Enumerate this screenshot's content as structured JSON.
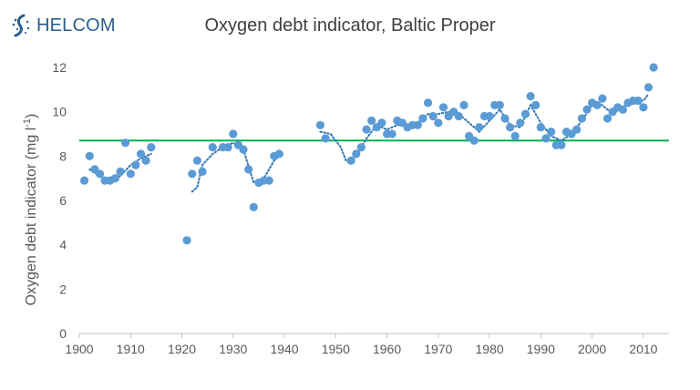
{
  "logo": {
    "text": "HELCOM"
  },
  "chart_data": {
    "type": "scatter",
    "title": "Oxygen debt indicator, Baltic Proper",
    "xlabel": "",
    "ylabel": "Oxygen debt indicator (mg l",
    "ylabel_sup": "-1",
    "ylabel_close": ")",
    "xlim": [
      1900,
      2015
    ],
    "ylim": [
      0,
      12
    ],
    "x_ticks": [
      1900,
      1910,
      1920,
      1930,
      1940,
      1950,
      1960,
      1970,
      1980,
      1990,
      2000,
      2010
    ],
    "y_ticks": [
      0,
      2,
      4,
      6,
      8,
      10,
      12
    ],
    "grid": false,
    "colors": {
      "points": "#5b9bd5",
      "threshold": "#00b050",
      "trend": "#2e75b6",
      "axis": "#bfbfbf"
    },
    "threshold": 8.7,
    "series": [
      {
        "points": [
          [
            1901,
            6.9
          ],
          [
            1902,
            8.0
          ],
          [
            1903,
            7.4
          ],
          [
            1904,
            7.2
          ],
          [
            1905,
            6.9
          ],
          [
            1906,
            6.9
          ],
          [
            1907,
            7.0
          ],
          [
            1908,
            7.3
          ],
          [
            1909,
            8.6
          ],
          [
            1910,
            7.2
          ],
          [
            1911,
            7.6
          ],
          [
            1912,
            8.1
          ],
          [
            1913,
            7.8
          ],
          [
            1914,
            8.4
          ],
          [
            1921,
            4.2
          ],
          [
            1922,
            7.2
          ],
          [
            1923,
            7.8
          ],
          [
            1924,
            7.3
          ],
          [
            1926,
            8.4
          ],
          [
            1928,
            8.4
          ],
          [
            1929,
            8.4
          ],
          [
            1930,
            9.0
          ],
          [
            1931,
            8.5
          ],
          [
            1932,
            8.3
          ],
          [
            1933,
            7.4
          ],
          [
            1934,
            5.7
          ],
          [
            1935,
            6.8
          ],
          [
            1936,
            6.9
          ],
          [
            1937,
            6.9
          ],
          [
            1938,
            8.0
          ],
          [
            1939,
            8.1
          ],
          [
            1947,
            9.4
          ],
          [
            1948,
            8.8
          ],
          [
            1953,
            7.8
          ],
          [
            1954,
            8.1
          ],
          [
            1955,
            8.4
          ],
          [
            1956,
            9.2
          ],
          [
            1957,
            9.6
          ],
          [
            1958,
            9.3
          ],
          [
            1959,
            9.5
          ],
          [
            1960,
            9.0
          ],
          [
            1961,
            9.0
          ],
          [
            1962,
            9.6
          ],
          [
            1963,
            9.5
          ],
          [
            1964,
            9.3
          ],
          [
            1965,
            9.4
          ],
          [
            1966,
            9.4
          ],
          [
            1967,
            9.7
          ],
          [
            1968,
            10.4
          ],
          [
            1969,
            9.8
          ],
          [
            1970,
            9.5
          ],
          [
            1971,
            10.2
          ],
          [
            1972,
            9.8
          ],
          [
            1973,
            10.0
          ],
          [
            1974,
            9.8
          ],
          [
            1975,
            10.3
          ],
          [
            1976,
            8.9
          ],
          [
            1977,
            8.7
          ],
          [
            1978,
            9.3
          ],
          [
            1979,
            9.8
          ],
          [
            1980,
            9.8
          ],
          [
            1981,
            10.3
          ],
          [
            1982,
            10.3
          ],
          [
            1983,
            9.7
          ],
          [
            1984,
            9.3
          ],
          [
            1985,
            8.9
          ],
          [
            1986,
            9.5
          ],
          [
            1987,
            9.9
          ],
          [
            1988,
            10.7
          ],
          [
            1989,
            10.3
          ],
          [
            1990,
            9.3
          ],
          [
            1991,
            8.8
          ],
          [
            1992,
            9.1
          ],
          [
            1993,
            8.5
          ],
          [
            1994,
            8.5
          ],
          [
            1995,
            9.1
          ],
          [
            1996,
            9.0
          ],
          [
            1997,
            9.2
          ],
          [
            1998,
            9.7
          ],
          [
            1999,
            10.1
          ],
          [
            2000,
            10.4
          ],
          [
            2001,
            10.3
          ],
          [
            2002,
            10.6
          ],
          [
            2003,
            9.7
          ],
          [
            2004,
            10.0
          ],
          [
            2005,
            10.2
          ],
          [
            2006,
            10.1
          ],
          [
            2007,
            10.4
          ],
          [
            2008,
            10.5
          ],
          [
            2009,
            10.5
          ],
          [
            2010,
            10.2
          ],
          [
            2011,
            11.1
          ],
          [
            2012,
            12.0
          ]
        ]
      }
    ],
    "trend_segments": [
      [
        [
          1902,
          7.4
        ],
        [
          1904,
          7.1
        ],
        [
          1906,
          6.9
        ],
        [
          1908,
          7.1
        ],
        [
          1910,
          7.6
        ],
        [
          1912,
          7.9
        ],
        [
          1914,
          8.1
        ]
      ],
      [
        [
          1922,
          6.4
        ],
        [
          1923,
          6.6
        ],
        [
          1924,
          7.6
        ],
        [
          1926,
          8.1
        ],
        [
          1928,
          8.4
        ],
        [
          1930,
          8.6
        ],
        [
          1932,
          8.3
        ],
        [
          1934,
          6.8
        ],
        [
          1936,
          7.0
        ],
        [
          1938,
          7.8
        ],
        [
          1939,
          8.0
        ]
      ],
      [
        [
          1947,
          9.1
        ],
        [
          1949,
          9.0
        ],
        [
          1951,
          8.4
        ],
        [
          1952,
          7.8
        ],
        [
          1954,
          8.0
        ],
        [
          1956,
          8.8
        ],
        [
          1958,
          9.4
        ],
        [
          1960,
          9.2
        ],
        [
          1962,
          9.4
        ],
        [
          1964,
          9.4
        ],
        [
          1966,
          9.5
        ],
        [
          1968,
          9.9
        ],
        [
          1970,
          9.9
        ],
        [
          1972,
          10.0
        ],
        [
          1974,
          9.9
        ],
        [
          1976,
          9.5
        ],
        [
          1978,
          9.1
        ],
        [
          1980,
          9.6
        ],
        [
          1982,
          10.1
        ],
        [
          1984,
          9.4
        ],
        [
          1986,
          9.3
        ],
        [
          1988,
          10.3
        ],
        [
          1990,
          9.5
        ],
        [
          1992,
          8.9
        ],
        [
          1994,
          8.7
        ],
        [
          1996,
          9.0
        ],
        [
          1998,
          9.6
        ],
        [
          2000,
          10.3
        ],
        [
          2002,
          10.3
        ],
        [
          2004,
          9.9
        ],
        [
          2006,
          10.2
        ],
        [
          2008,
          10.5
        ],
        [
          2010,
          10.5
        ],
        [
          2011,
          10.8
        ]
      ]
    ]
  }
}
